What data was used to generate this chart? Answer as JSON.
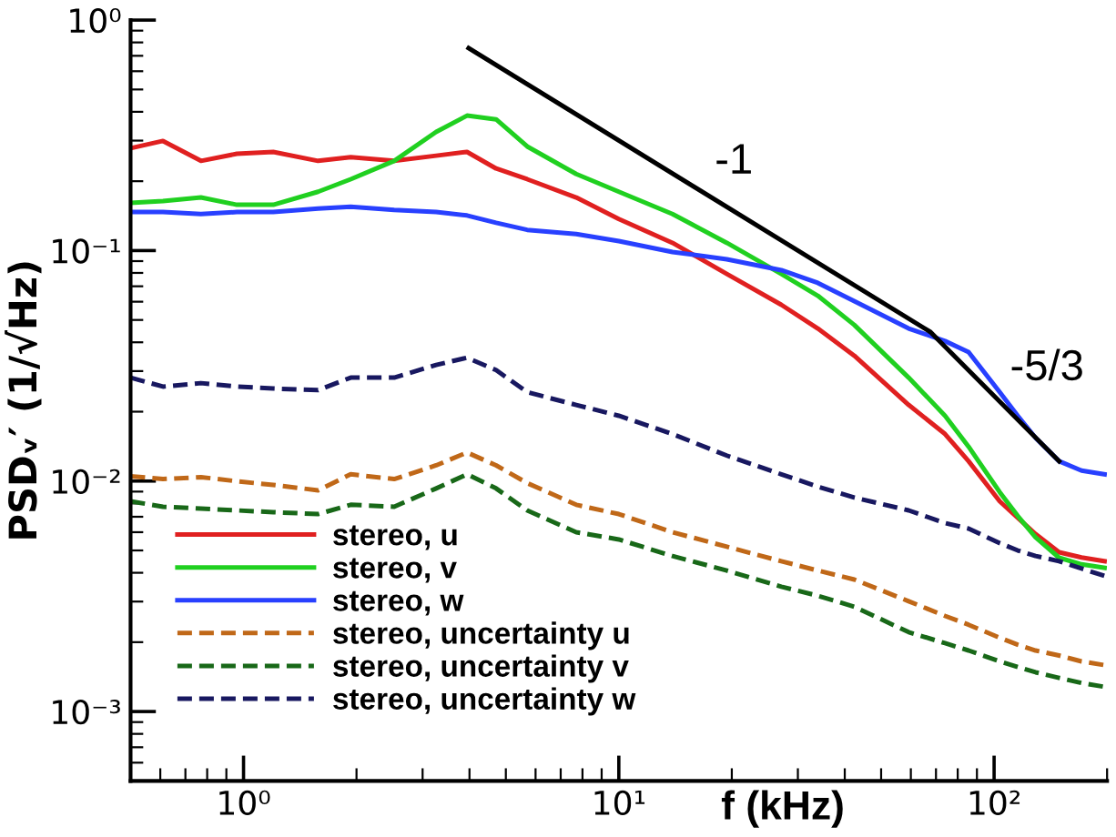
{
  "chart_data": {
    "type": "line",
    "xlabel": "f (kHz)",
    "ylabel": "PSDᵥ′ (1/√Hz)",
    "log": "xy",
    "grid": false,
    "legend": "bottom left",
    "xlim": [
      0.5,
      200
    ],
    "ylim": [
      0.0005,
      1
    ],
    "xticks": [
      {
        "value": 1,
        "label": "10⁰"
      },
      {
        "value": 10,
        "label": "10¹"
      },
      {
        "value": 100,
        "label": "10²"
      }
    ],
    "yticks": [
      {
        "value": 0.001,
        "label": "10⁻³"
      },
      {
        "value": 0.01,
        "label": "10⁻²"
      },
      {
        "value": 0.1,
        "label": "10⁻¹"
      },
      {
        "value": 1,
        "label": "10⁰"
      }
    ],
    "x": [
      0.5,
      0.61,
      0.77,
      0.96,
      1.2,
      1.58,
      1.93,
      2.52,
      3.26,
      3.94,
      4.71,
      5.7,
      7.7,
      10,
      13.9,
      19.4,
      27.1,
      33.9,
      42.4,
      59.2,
      74,
      85.5,
      103.5,
      115.6,
      129,
      149,
      171,
      197
    ],
    "annotations": [
      "-1",
      "-5/3"
    ],
    "series": [
      {
        "name": "stereo, u",
        "color": "#e02020",
        "line_style": "solid",
        "values": [
          0.278,
          0.299,
          0.245,
          0.263,
          0.268,
          0.245,
          0.254,
          0.245,
          0.258,
          0.268,
          0.227,
          0.204,
          0.17,
          0.137,
          0.108,
          0.0792,
          0.0582,
          0.0459,
          0.035,
          0.0214,
          0.016,
          0.0122,
          0.00817,
          0.00693,
          0.00589,
          0.00491,
          0.00466,
          0.00449
        ]
      },
      {
        "name": "stereo, v",
        "color": "#20d020",
        "line_style": "solid",
        "values": [
          0.161,
          0.164,
          0.17,
          0.158,
          0.158,
          0.18,
          0.204,
          0.245,
          0.327,
          0.385,
          0.371,
          0.283,
          0.215,
          0.18,
          0.144,
          0.108,
          0.0792,
          0.0637,
          0.0476,
          0.0281,
          0.0192,
          0.0141,
          0.00895,
          0.00706,
          0.0057,
          0.00465,
          0.00435,
          0.0042
        ]
      },
      {
        "name": "stereo, w",
        "color": "#2840ff",
        "line_style": "solid",
        "values": [
          0.147,
          0.147,
          0.144,
          0.147,
          0.147,
          0.152,
          0.155,
          0.15,
          0.147,
          0.142,
          0.132,
          0.123,
          0.118,
          0.11,
          0.0986,
          0.0917,
          0.0822,
          0.0724,
          0.0604,
          0.0459,
          0.0405,
          0.0363,
          0.0243,
          0.0192,
          0.0154,
          0.0122,
          0.0111,
          0.0107
        ]
      },
      {
        "name": "stereo, uncertainty u",
        "color": "#c06818",
        "line_style": "dashed",
        "values": [
          0.0105,
          0.0102,
          0.0104,
          0.00998,
          0.00962,
          0.00912,
          0.0107,
          0.0102,
          0.0117,
          0.0133,
          0.0117,
          0.0098,
          0.00789,
          0.00719,
          0.006,
          0.00519,
          0.00449,
          0.00409,
          0.00374,
          0.00301,
          0.0026,
          0.00238,
          0.00209,
          0.00195,
          0.00184,
          0.00175,
          0.00165,
          0.00159
        ]
      },
      {
        "name": "stereo, uncertainty v",
        "color": "#186818",
        "line_style": "dashed",
        "values": [
          0.00817,
          0.00774,
          0.0076,
          0.00746,
          0.00733,
          0.00719,
          0.00789,
          0.00774,
          0.00929,
          0.0107,
          0.00929,
          0.00746,
          0.006,
          0.00558,
          0.00473,
          0.00409,
          0.00348,
          0.00318,
          0.00285,
          0.00221,
          0.00198,
          0.00184,
          0.00165,
          0.00156,
          0.00148,
          0.0014,
          0.00133,
          0.00128
        ]
      },
      {
        "name": "stereo, uncertainty w",
        "color": "#181860",
        "line_style": "dashed",
        "values": [
          0.0281,
          0.0257,
          0.0266,
          0.0257,
          0.0252,
          0.0248,
          0.0281,
          0.0281,
          0.0319,
          0.0343,
          0.0303,
          0.0243,
          0.0214,
          0.0192,
          0.016,
          0.0129,
          0.0107,
          0.00946,
          0.00848,
          0.00746,
          0.00657,
          0.00622,
          0.00538,
          0.005,
          0.00473,
          0.00449,
          0.00417,
          0.00388
        ]
      },
      {
        "type": "line",
        "color": "#000000",
        "line_style": "solid",
        "x": [
          3.98,
          67.7,
          149
        ],
        "values": [
          0.755,
          0.0443,
          0.0122
        ]
      }
    ]
  }
}
